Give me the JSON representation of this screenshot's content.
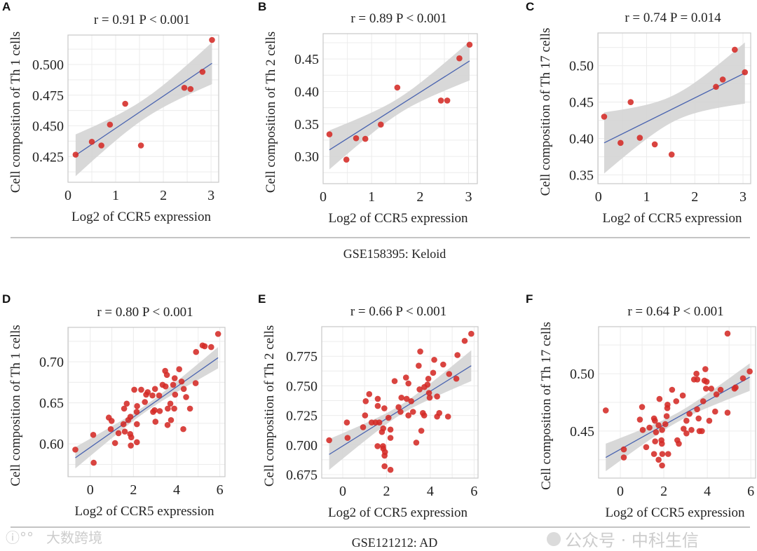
{
  "groups": [
    {
      "caption": "GSE158395: Keloid"
    },
    {
      "caption": "GSE121212: AD"
    }
  ],
  "watermarks": [
    "公众号 · 中科生信",
    "大数跨境"
  ],
  "colors": {
    "point": "#d42a26",
    "fit": "#4a64b0",
    "band": "#d4d4d4",
    "grid": "#ececec",
    "frame": "#c8c8c8"
  },
  "chart_data": [
    {
      "panel": "A",
      "type": "scatter",
      "title": "r = 0.91   P < 0.001",
      "xlabel": "Log2 of CCR5 expression",
      "ylabel": "Cell composition of  Th 1 cells",
      "xlim": [
        0,
        3.16
      ],
      "ylim": [
        0.404,
        0.524
      ],
      "xticks": [
        0,
        1,
        2,
        3
      ],
      "xtick_labels": [
        "0",
        "1",
        "2",
        "3"
      ],
      "yticks": [
        0.425,
        0.45,
        0.475,
        0.5
      ],
      "ytick_labels": [
        "0.425",
        "0.450",
        "0.475",
        "0.500"
      ],
      "x": [
        0.16,
        0.5,
        0.7,
        0.88,
        1.2,
        1.53,
        2.44,
        2.57,
        2.82,
        3.02
      ],
      "y": [
        0.4265,
        0.437,
        0.434,
        0.451,
        0.468,
        0.434,
        0.481,
        0.48,
        0.494,
        0.52
      ],
      "fit": {
        "x": [
          0.16,
          3.02
        ],
        "y": [
          0.426,
          0.501
        ]
      },
      "ci_halfwidth": [
        0.017,
        0.008
      ]
    },
    {
      "panel": "B",
      "type": "scatter",
      "title": "r = 0.89   P < 0.001",
      "xlabel": "Log2 of CCR5 expression",
      "ylabel": "Cell composition of Th 2 cells",
      "xlim": [
        0,
        3.18
      ],
      "ylim": [
        0.258,
        0.489
      ],
      "xticks": [
        0,
        1,
        2,
        3
      ],
      "xtick_labels": [
        "0",
        "1",
        "2",
        "3"
      ],
      "yticks": [
        0.3,
        0.35,
        0.4,
        0.45
      ],
      "ytick_labels": [
        "0.30",
        "0.35",
        "0.40",
        "0.45"
      ],
      "x": [
        0.13,
        0.48,
        0.68,
        0.87,
        1.19,
        1.53,
        2.43,
        2.56,
        2.81,
        3.02
      ],
      "y": [
        0.334,
        0.295,
        0.328,
        0.327,
        0.349,
        0.406,
        0.386,
        0.386,
        0.451,
        0.472
      ],
      "fit": {
        "x": [
          0.13,
          3.02
        ],
        "y": [
          0.31,
          0.447
        ]
      },
      "ci_halfwidth": [
        0.03,
        0.012
      ]
    },
    {
      "panel": "C",
      "type": "scatter",
      "title": "r = 0.74   P = 0.014",
      "xlabel": "Log2 of CCR5 expression",
      "ylabel": "Cell composition of  Th 17 cells",
      "xlim": [
        -0.01,
        3.16
      ],
      "ylim": [
        0.338,
        0.545
      ],
      "xticks": [
        0,
        1,
        2,
        3
      ],
      "xtick_labels": [
        "0",
        "1",
        "2",
        "3"
      ],
      "yticks": [
        0.35,
        0.4,
        0.45,
        0.5
      ],
      "ytick_labels": [
        "0.35",
        "0.40",
        "0.45",
        "0.50"
      ],
      "x": [
        0.12,
        0.46,
        0.67,
        0.86,
        1.17,
        1.52,
        2.44,
        2.58,
        2.83,
        3.04
      ],
      "y": [
        0.43,
        0.394,
        0.45,
        0.401,
        0.392,
        0.378,
        0.471,
        0.481,
        0.522,
        0.491
      ],
      "fit": {
        "x": [
          0.12,
          3.04
        ],
        "y": [
          0.394,
          0.49
        ]
      },
      "ci_halfwidth": [
        0.042,
        0.018
      ]
    },
    {
      "panel": "D",
      "type": "scatter",
      "title": "r = 0.80   P < 0.001",
      "xlabel": "Log2 of CCR5 expression",
      "ylabel": "Cell composition of  Th 1 cells",
      "xlim": [
        -1.03,
        6.24
      ],
      "ylim": [
        0.56,
        0.742
      ],
      "xticks": [
        0,
        2,
        4,
        6
      ],
      "xtick_labels": [
        "0",
        "2",
        "4",
        "6"
      ],
      "yticks": [
        0.6,
        0.65,
        0.7
      ],
      "ytick_labels": [
        "0.60",
        "0.65",
        "0.70"
      ],
      "x": [
        -0.69,
        0.14,
        0.16,
        0.86,
        0.99,
        0.95,
        1.15,
        1.31,
        1.57,
        1.69,
        1.54,
        1.6,
        1.76,
        1.86,
        1.85,
        1.9,
        1.88,
        2.04,
        2.16,
        2.17,
        2.15,
        2.16,
        2.36,
        2.53,
        2.59,
        2.66,
        2.88,
        2.91,
        2.98,
        3.0,
        3.02,
        3.22,
        3.19,
        3.35,
        3.47,
        3.49,
        3.55,
        3.59,
        3.58,
        3.71,
        3.74,
        3.84,
        3.89,
        3.91,
        3.93,
        4.12,
        4.23,
        4.33,
        4.31,
        4.44,
        4.62,
        4.88,
        4.9,
        5.2,
        5.3,
        5.6,
        5.92
      ],
      "y": [
        0.593,
        0.611,
        0.577,
        0.632,
        0.628,
        0.618,
        0.601,
        0.613,
        0.643,
        0.649,
        0.624,
        0.615,
        0.629,
        0.633,
        0.612,
        0.608,
        0.598,
        0.666,
        0.624,
        0.646,
        0.639,
        0.602,
        0.666,
        0.651,
        0.66,
        0.663,
        0.659,
        0.639,
        0.641,
        0.667,
        0.627,
        0.64,
        0.659,
        0.672,
        0.689,
        0.67,
        0.684,
        0.643,
        0.623,
        0.649,
        0.629,
        0.672,
        0.643,
        0.68,
        0.66,
        0.691,
        0.676,
        0.667,
        0.618,
        0.657,
        0.643,
        0.674,
        0.712,
        0.72,
        0.719,
        0.718,
        0.734
      ],
      "fit": {
        "x": [
          -0.69,
          5.92
        ],
        "y": [
          0.583,
          0.705
        ]
      },
      "ci_halfwidth": [
        0.013,
        0.004
      ]
    },
    {
      "panel": "E",
      "type": "scatter",
      "title": "r = 0.66   P < 0.001",
      "xlabel": "Log2 of CCR5 expression",
      "ylabel": "Cell composition of Th 2 cells",
      "xlim": [
        -0.96,
        6.18
      ],
      "ylim": [
        0.672,
        0.8
      ],
      "xticks": [
        0,
        2,
        4,
        6
      ],
      "xtick_labels": [
        "0",
        "2",
        "4",
        "6"
      ],
      "yticks": [
        0.675,
        0.7,
        0.725,
        0.75,
        0.775
      ],
      "ytick_labels": [
        "0.675",
        "0.700",
        "0.725",
        "0.750",
        "0.775"
      ],
      "x": [
        -0.62,
        0.19,
        0.22,
        0.93,
        1.02,
        1.05,
        1.21,
        1.32,
        1.5,
        1.6,
        1.6,
        1.59,
        1.67,
        1.79,
        1.85,
        1.85,
        1.91,
        1.91,
        1.9,
        1.84,
        1.93,
        2.09,
        2.18,
        2.18,
        2.18,
        2.37,
        2.55,
        2.64,
        2.68,
        2.89,
        2.92,
        3.0,
        3.0,
        3.13,
        3.21,
        3.36,
        3.47,
        3.51,
        3.54,
        3.59,
        3.66,
        3.73,
        3.72,
        3.87,
        3.91,
        3.94,
        3.97,
        4.13,
        4.18,
        4.31,
        4.31,
        4.41,
        4.59,
        4.81,
        4.86,
        5.19,
        5.24,
        5.57,
        5.87
      ],
      "y": [
        0.704,
        0.719,
        0.706,
        0.715,
        0.725,
        0.737,
        0.743,
        0.719,
        0.719,
        0.739,
        0.733,
        0.699,
        0.719,
        0.711,
        0.714,
        0.697,
        0.691,
        0.682,
        0.731,
        0.699,
        0.694,
        0.723,
        0.713,
        0.706,
        0.679,
        0.754,
        0.732,
        0.728,
        0.74,
        0.757,
        0.739,
        0.752,
        0.725,
        0.737,
        0.728,
        0.702,
        0.767,
        0.747,
        0.779,
        0.712,
        0.727,
        0.749,
        0.725,
        0.751,
        0.756,
        0.744,
        0.74,
        0.761,
        0.772,
        0.741,
        0.724,
        0.727,
        0.768,
        0.724,
        0.76,
        0.756,
        0.776,
        0.788,
        0.794
      ],
      "fit": {
        "x": [
          -0.62,
          5.87
        ],
        "y": [
          0.692,
          0.767
        ]
      },
      "ci_halfwidth": [
        0.013,
        0.004
      ]
    },
    {
      "panel": "F",
      "type": "scatter",
      "title": "r = 0.64   P < 0.001",
      "xlabel": "Log2 of CCR5 expression",
      "ylabel": "Cell composition of  Th 17 cells",
      "xlim": [
        -1.0,
        6.22
      ],
      "ylim": [
        0.409,
        0.541
      ],
      "xticks": [
        0,
        2,
        4,
        6
      ],
      "xtick_labels": [
        "0",
        "2",
        "4",
        "6"
      ],
      "yticks": [
        0.45,
        0.5
      ],
      "ytick_labels": [
        "0.45",
        "0.50"
      ],
      "x": [
        -0.67,
        0.16,
        0.16,
        0.9,
        1.0,
        1.03,
        1.19,
        1.34,
        1.55,
        1.55,
        1.59,
        1.6,
        1.64,
        1.76,
        1.76,
        1.8,
        1.89,
        1.92,
        1.91,
        1.92,
        1.93,
        2.07,
        2.13,
        2.17,
        2.16,
        2.2,
        2.38,
        2.57,
        2.62,
        2.69,
        2.87,
        2.91,
        3.04,
        3.04,
        3.18,
        3.27,
        3.39,
        3.5,
        3.53,
        3.54,
        3.6,
        3.64,
        3.75,
        3.81,
        3.87,
        3.91,
        3.94,
        3.97,
        4.09,
        4.18,
        4.36,
        4.42,
        4.61,
        4.93,
        4.93,
        5.25,
        5.3,
        5.64,
        5.95
      ],
      "y": [
        0.468,
        0.434,
        0.427,
        0.46,
        0.471,
        0.451,
        0.436,
        0.453,
        0.43,
        0.461,
        0.459,
        0.441,
        0.449,
        0.455,
        0.425,
        0.478,
        0.442,
        0.451,
        0.439,
        0.42,
        0.43,
        0.456,
        0.463,
        0.473,
        0.47,
        0.43,
        0.486,
        0.476,
        0.442,
        0.439,
        0.481,
        0.452,
        0.448,
        0.459,
        0.465,
        0.451,
        0.495,
        0.5,
        0.469,
        0.495,
        0.461,
        0.45,
        0.45,
        0.476,
        0.494,
        0.504,
        0.487,
        0.493,
        0.459,
        0.487,
        0.467,
        0.482,
        0.486,
        0.535,
        0.466,
        0.487,
        0.488,
        0.496,
        0.502
      ],
      "fit": {
        "x": [
          -0.67,
          5.95
        ],
        "y": [
          0.427,
          0.497
        ]
      },
      "ci_halfwidth": [
        0.012,
        0.004
      ]
    }
  ]
}
